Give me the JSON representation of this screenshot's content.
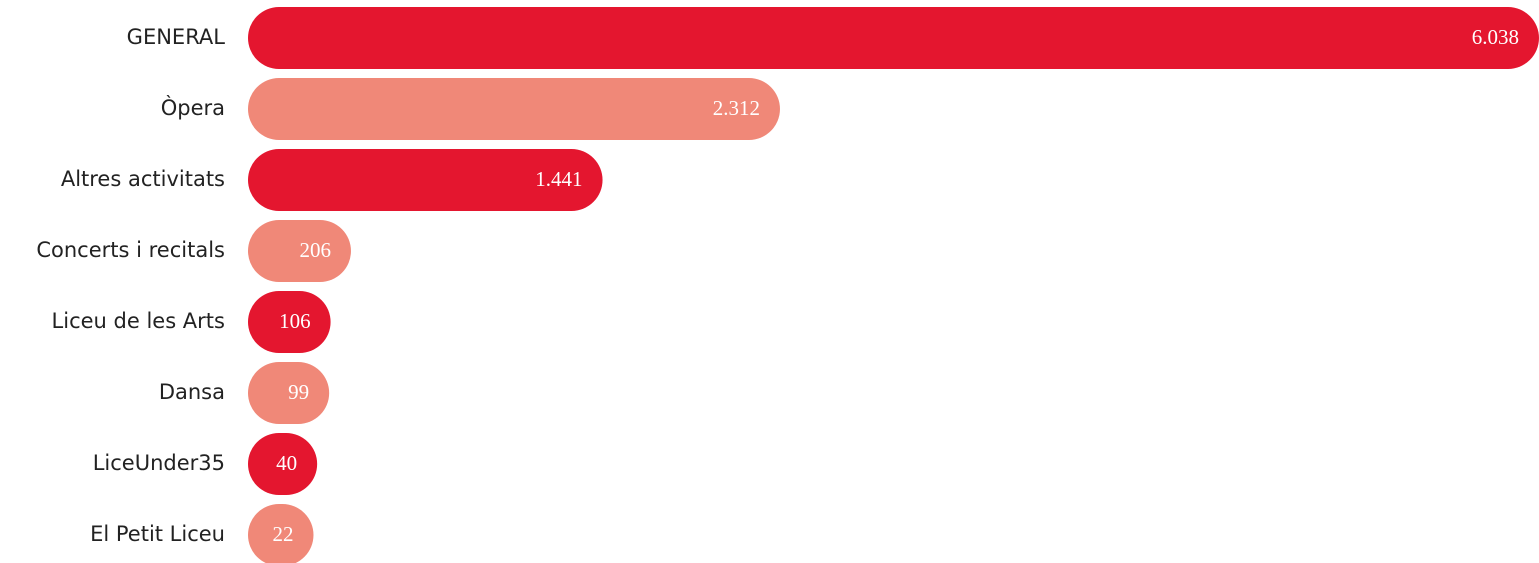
{
  "chart_data": {
    "type": "bar",
    "orientation": "horizontal",
    "categories": [
      "GENERAL",
      "Òpera",
      "Altres activitats",
      "Concerts i recitals",
      "Liceu de les Arts",
      "Dansa",
      "LiceUnder35",
      "El Petit Liceu"
    ],
    "values": [
      6038,
      2312,
      1441,
      206,
      106,
      99,
      40,
      22
    ],
    "value_labels": [
      "6.038",
      "2.312",
      "1.441",
      "206",
      "106",
      "99",
      "40",
      "22"
    ],
    "colors": [
      "#e4162f",
      "#f08878",
      "#e4162f",
      "#f08878",
      "#e4162f",
      "#f08878",
      "#e4162f",
      "#f08878"
    ]
  }
}
